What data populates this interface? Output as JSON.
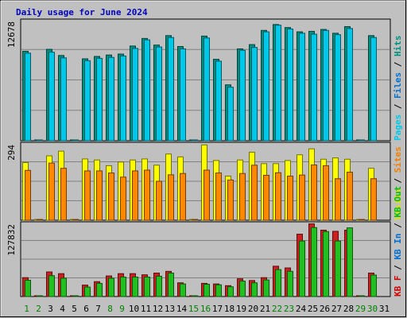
{
  "chart_data": {
    "type": "bar",
    "title": "Daily usage for June 2024",
    "categories": [
      "1",
      "2",
      "3",
      "4",
      "5",
      "6",
      "7",
      "8",
      "9",
      "10",
      "11",
      "12",
      "13",
      "14",
      "15",
      "16",
      "17",
      "18",
      "19",
      "20",
      "21",
      "22",
      "23",
      "24",
      "25",
      "26",
      "27",
      "28",
      "29",
      "30",
      "31"
    ],
    "weekend_days": [
      "1",
      "2",
      "8",
      "9",
      "15",
      "16",
      "22",
      "23",
      "29",
      "30"
    ],
    "panels": [
      {
        "id": "top",
        "ymax": 12678,
        "ymax_label": "12678",
        "legend": [
          {
            "text": "Pages",
            "color": "#00c8e8"
          },
          {
            "text": " / ",
            "color": "#000000"
          },
          {
            "text": "Files",
            "color": "#0070d0"
          },
          {
            "text": " / ",
            "color": "#000000"
          },
          {
            "text": "Hits",
            "color": "#009080"
          }
        ],
        "series": [
          {
            "name": "Hits",
            "color": "#009080",
            "values": [
              9450,
              0,
              9650,
              9000,
              0,
              8650,
              8900,
              9050,
              9150,
              10000,
              10800,
              10100,
              11100,
              9950,
              0,
              11050,
              8600,
              5900,
              9700,
              10150,
              11650,
              12270,
              11950,
              11500,
              11550,
              11750,
              11350,
              12050,
              0,
              11100,
              null
            ]
          },
          {
            "name": "Files",
            "color": "#00c8e8",
            "values": [
              9250,
              0,
              9350,
              8750,
              0,
              8450,
              8700,
              8800,
              8950,
              9750,
              10650,
              9900,
              10900,
              9700,
              0,
              10850,
              8400,
              5650,
              9550,
              9850,
              11500,
              12200,
              11800,
              11350,
              11250,
              11650,
              11200,
              11850,
              0,
              10900,
              null
            ]
          }
        ]
      },
      {
        "id": "middle",
        "ymax": 294,
        "ymax_label": "294",
        "legend": [
          {
            "text": "Visits",
            "color": "#e0e000"
          },
          {
            "text": " / ",
            "color": "#000000"
          },
          {
            "text": "Sites",
            "color": "#f08000"
          }
        ],
        "series": [
          {
            "name": "Visits",
            "color": "#ffff00",
            "values": [
              222,
              0,
              248,
              266,
              3,
              236,
              232,
              210,
              224,
              232,
              236,
              212,
              255,
              244,
              0,
              290,
              230,
              170,
              232,
              262,
              218,
              218,
              230,
              252,
              275,
              235,
              240,
              235,
              0,
              200,
              null
            ]
          },
          {
            "name": "Sites",
            "color": "#ff8800",
            "values": [
              192,
              0,
              220,
              200,
              3,
              190,
              190,
              182,
              166,
              190,
              193,
              150,
              175,
              180,
              0,
              193,
              182,
              155,
              180,
              212,
              173,
              183,
              170,
              174,
              213,
              210,
              160,
              185,
              0,
              160,
              null
            ]
          }
        ]
      },
      {
        "id": "bottom",
        "ymax": 127832,
        "ymax_label": "127832",
        "legend": [
          {
            "text": "KB F",
            "color": "#d00000"
          },
          {
            "text": " / ",
            "color": "#000000"
          },
          {
            "text": "KB In",
            "color": "#0070d0"
          },
          {
            "text": " / ",
            "color": "#000000"
          },
          {
            "text": "KB Out",
            "color": "#00c000"
          }
        ],
        "series": [
          {
            "name": "KB F",
            "color": "#cc2020",
            "values": [
              33000,
              0,
              43000,
              40000,
              0,
              20000,
              26000,
              36000,
              40000,
              40000,
              38000,
              41000,
              44000,
              24000,
              0,
              23000,
              22000,
              19000,
              31000,
              28000,
              33000,
              53000,
              50000,
              109000,
              127000,
              116000,
              114000,
              116000,
              0,
              41000,
              null
            ]
          },
          {
            "name": "KB Out",
            "color": "#20c020",
            "values": [
              28500,
              0,
              36500,
              32000,
              0,
              16500,
              23000,
              32000,
              34000,
              34000,
              34000,
              35500,
              41000,
              22000,
              0,
              21500,
              20500,
              17000,
              27000,
              24000,
              29000,
              47000,
              44000,
              97000,
              120500,
              113500,
              97000,
              120000,
              0,
              37500,
              null
            ]
          }
        ]
      }
    ]
  }
}
